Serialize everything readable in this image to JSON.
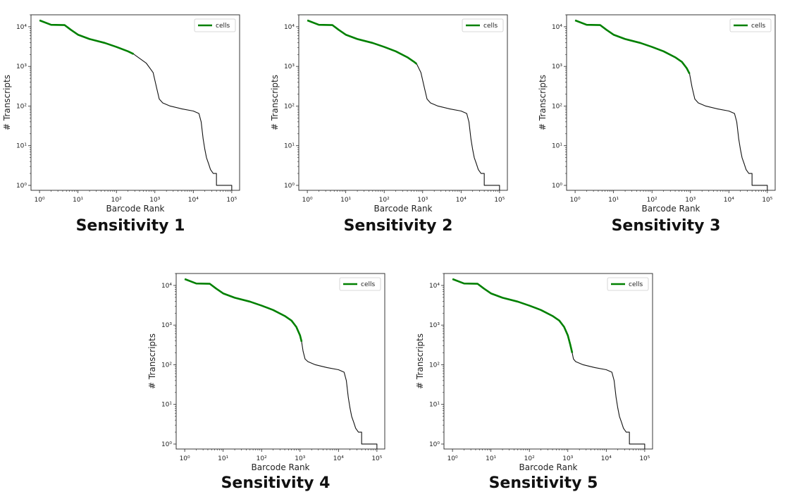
{
  "chart_data": [
    {
      "type": "line",
      "title": "",
      "caption": "Sensitivity 1",
      "xlabel": "Barcode Rank",
      "ylabel": "# Transcripts",
      "xscale": "log",
      "yscale": "log",
      "xlim": [
        0.6,
        160000
      ],
      "ylim": [
        0.75,
        20000
      ],
      "x_tick_labels": [
        "10⁰",
        "10¹",
        "10²",
        "10³",
        "10⁴",
        "10⁵"
      ],
      "y_tick_labels": [
        "10⁰",
        "10¹",
        "10²",
        "10³",
        "10⁴"
      ],
      "legend": {
        "label": "cells",
        "position": "top-right"
      },
      "grid": false,
      "series": [
        {
          "role": "cells",
          "color": "#008000",
          "x": [
            1,
            2,
            4.5,
            5.5,
            6.5,
            10,
            20,
            50,
            100,
            200,
            280
          ],
          "y": [
            14500,
            11200,
            11000,
            9500,
            8400,
            6300,
            4900,
            3900,
            3100,
            2400,
            2050
          ]
        },
        {
          "role": "background",
          "color": "#111111",
          "x": [
            280,
            600,
            900,
            1100,
            1300,
            1600,
            2500,
            5000,
            10000,
            14000,
            16000,
            18000,
            20000,
            22000,
            25000,
            28000,
            33000,
            33000,
            40000,
            40000,
            100000,
            100000
          ],
          "y": [
            2050,
            1200,
            700,
            300,
            150,
            120,
            100,
            85,
            75,
            65,
            40,
            15,
            8,
            5,
            3.5,
            2.5,
            2,
            2,
            2,
            1,
            1,
            0.75
          ]
        }
      ]
    },
    {
      "type": "line",
      "title": "",
      "caption": "Sensitivity 2",
      "xlabel": "Barcode Rank",
      "ylabel": "# Transcripts",
      "xscale": "log",
      "yscale": "log",
      "xlim": [
        0.6,
        160000
      ],
      "ylim": [
        0.75,
        20000
      ],
      "x_tick_labels": [
        "10⁰",
        "10¹",
        "10²",
        "10³",
        "10⁴",
        "10⁵"
      ],
      "y_tick_labels": [
        "10⁰",
        "10¹",
        "10²",
        "10³",
        "10⁴"
      ],
      "legend": {
        "label": "cells",
        "position": "top-right"
      },
      "grid": false,
      "series": [
        {
          "role": "cells",
          "color": "#008000",
          "x": [
            1,
            2,
            4.5,
            5.5,
            6.5,
            10,
            20,
            50,
            100,
            200,
            400,
            600,
            700
          ],
          "y": [
            14500,
            11200,
            11000,
            9500,
            8400,
            6300,
            4900,
            3900,
            3100,
            2400,
            1700,
            1300,
            1150
          ]
        },
        {
          "role": "background",
          "color": "#111111",
          "x": [
            700,
            900,
            1100,
            1300,
            1600,
            2500,
            5000,
            10000,
            14000,
            16000,
            18000,
            20000,
            22000,
            25000,
            28000,
            33000,
            33000,
            40000,
            40000,
            100000,
            100000
          ],
          "y": [
            1150,
            700,
            300,
            150,
            120,
            100,
            85,
            75,
            65,
            40,
            15,
            8,
            5,
            3.5,
            2.5,
            2,
            2,
            2,
            1,
            1,
            0.75
          ]
        }
      ]
    },
    {
      "type": "line",
      "title": "",
      "caption": "Sensitivity 3",
      "xlabel": "Barcode Rank",
      "ylabel": "# Transcripts",
      "xscale": "log",
      "yscale": "log",
      "xlim": [
        0.6,
        160000
      ],
      "ylim": [
        0.75,
        20000
      ],
      "x_tick_labels": [
        "10⁰",
        "10¹",
        "10²",
        "10³",
        "10⁴",
        "10⁵"
      ],
      "y_tick_labels": [
        "10⁰",
        "10¹",
        "10²",
        "10³",
        "10⁴"
      ],
      "legend": {
        "label": "cells",
        "position": "top-right"
      },
      "grid": false,
      "series": [
        {
          "role": "cells",
          "color": "#008000",
          "x": [
            1,
            2,
            4.5,
            5.5,
            6.5,
            10,
            20,
            50,
            100,
            200,
            400,
            600,
            800,
            950
          ],
          "y": [
            14500,
            11200,
            11000,
            9500,
            8400,
            6300,
            4900,
            3900,
            3100,
            2400,
            1700,
            1300,
            900,
            650
          ]
        },
        {
          "role": "background",
          "color": "#111111",
          "x": [
            950,
            1100,
            1300,
            1600,
            2500,
            5000,
            10000,
            14000,
            16000,
            18000,
            20000,
            22000,
            25000,
            28000,
            33000,
            33000,
            40000,
            40000,
            100000,
            100000
          ],
          "y": [
            650,
            300,
            150,
            120,
            100,
            85,
            75,
            65,
            40,
            15,
            8,
            5,
            3.5,
            2.5,
            2,
            2,
            2,
            1,
            1,
            0.75
          ]
        }
      ]
    },
    {
      "type": "line",
      "title": "",
      "caption": "Sensitivity 4",
      "xlabel": "Barcode Rank",
      "ylabel": "# Transcripts",
      "xscale": "log",
      "yscale": "log",
      "xlim": [
        0.6,
        160000
      ],
      "ylim": [
        0.75,
        20000
      ],
      "x_tick_labels": [
        "10⁰",
        "10¹",
        "10²",
        "10³",
        "10⁴",
        "10⁵"
      ],
      "y_tick_labels": [
        "10⁰",
        "10¹",
        "10²",
        "10³",
        "10⁴"
      ],
      "legend": {
        "label": "cells",
        "position": "top-right"
      },
      "grid": false,
      "series": [
        {
          "role": "cells",
          "color": "#008000",
          "x": [
            1,
            2,
            4.5,
            5.5,
            6.5,
            10,
            20,
            50,
            100,
            200,
            400,
            600,
            800,
            1000,
            1100
          ],
          "y": [
            14500,
            11200,
            11000,
            9500,
            8400,
            6300,
            4900,
            3900,
            3100,
            2400,
            1700,
            1300,
            900,
            550,
            380
          ]
        },
        {
          "role": "background",
          "color": "#111111",
          "x": [
            1100,
            1200,
            1350,
            1600,
            2500,
            5000,
            10000,
            14000,
            16000,
            18000,
            20000,
            22000,
            25000,
            28000,
            33000,
            33000,
            40000,
            40000,
            100000,
            100000
          ],
          "y": [
            380,
            220,
            140,
            120,
            100,
            85,
            75,
            65,
            40,
            15,
            8,
            5,
            3.5,
            2.5,
            2,
            2,
            2,
            1,
            1,
            0.75
          ]
        }
      ]
    },
    {
      "type": "line",
      "title": "",
      "caption": "Sensitivity 5",
      "xlabel": "Barcode Rank",
      "ylabel": "# Transcripts",
      "xscale": "log",
      "yscale": "log",
      "xlim": [
        0.6,
        160000
      ],
      "ylim": [
        0.75,
        20000
      ],
      "x_tick_labels": [
        "10⁰",
        "10¹",
        "10²",
        "10³",
        "10⁴",
        "10⁵"
      ],
      "y_tick_labels": [
        "10⁰",
        "10¹",
        "10²",
        "10³",
        "10⁴"
      ],
      "legend": {
        "label": "cells",
        "position": "top-right"
      },
      "grid": false,
      "series": [
        {
          "role": "cells",
          "color": "#008000",
          "x": [
            1,
            2,
            4.5,
            5.5,
            6.5,
            10,
            20,
            50,
            100,
            200,
            400,
            600,
            800,
            1000,
            1150,
            1300
          ],
          "y": [
            14500,
            11200,
            11000,
            9500,
            8400,
            6300,
            4900,
            3900,
            3100,
            2400,
            1700,
            1300,
            900,
            550,
            330,
            200
          ]
        },
        {
          "role": "background",
          "color": "#111111",
          "x": [
            1300,
            1400,
            1600,
            2500,
            5000,
            10000,
            14000,
            16000,
            18000,
            20000,
            22000,
            25000,
            28000,
            33000,
            33000,
            40000,
            40000,
            100000,
            100000
          ],
          "y": [
            200,
            140,
            120,
            100,
            85,
            75,
            65,
            40,
            15,
            8,
            5,
            3.5,
            2.5,
            2,
            2,
            2,
            1,
            1,
            0.75
          ]
        }
      ]
    }
  ]
}
